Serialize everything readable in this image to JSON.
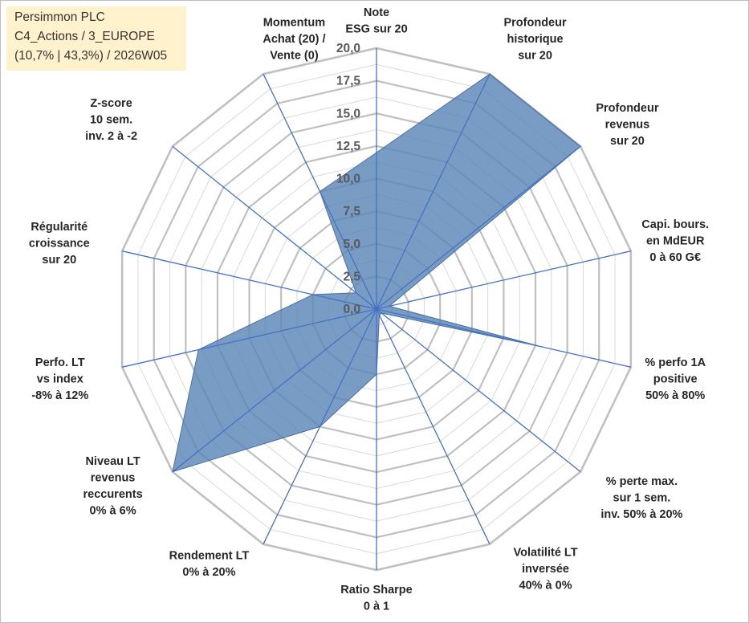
{
  "info_box": {
    "company": "Persimmon PLC",
    "category": "C4_Actions / 3_EUROPE",
    "stats": "(10,7% | 43,3%) / 2026W05"
  },
  "chart_data": {
    "type": "radar",
    "title": "",
    "rlim": [
      0,
      20
    ],
    "ticks": [
      "0,0",
      "2,5",
      "5,0",
      "7,5",
      "10,0",
      "12,5",
      "15,0",
      "17,5",
      "20,0"
    ],
    "tick_values": [
      0,
      2.5,
      5,
      7.5,
      10,
      12.5,
      15,
      17.5,
      20
    ],
    "grid": true,
    "colors": {
      "fill": "#5b86b8",
      "edge": "#4a6f9e",
      "spoke": "#4472c4",
      "grid": "#c0c0c0"
    },
    "axes": [
      {
        "label": [
          "Note",
          "ESG sur 20"
        ],
        "value": 12.0
      },
      {
        "label": [
          "Profondeur",
          "historique",
          "sur 20"
        ],
        "value": 20.0
      },
      {
        "label": [
          "Profondeur",
          "revenus",
          "sur 20"
        ],
        "value": 20.0
      },
      {
        "label": [
          "Capi. bours.",
          "en MdEUR",
          "0 à 60 G€"
        ],
        "value": 1.0
      },
      {
        "label": [
          "% perfo 1A",
          "positive",
          "50% à 80%"
        ],
        "value": 13.0
      },
      {
        "label": [
          "% perte max.",
          "sur 1 sem.",
          "inv. 50% à 20%"
        ],
        "value": 0.5
      },
      {
        "label": [
          "Volatilité LT",
          "inversée",
          "40% à 0%"
        ],
        "value": 0.5
      },
      {
        "label": [
          "Ratio Sharpe",
          "0 à 1"
        ],
        "value": 5.0
      },
      {
        "label": [
          "Rendement LT",
          "0% à 20%"
        ],
        "value": 10.0
      },
      {
        "label": [
          "Niveau LT",
          "revenus",
          "reccurents",
          "0% à 6%"
        ],
        "value": 20.0
      },
      {
        "label": [
          "Perfo. LT",
          "vs index",
          "-8% à 12%"
        ],
        "value": 14.0
      },
      {
        "label": [
          "Régularité",
          "croissance",
          "sur 20"
        ],
        "value": 5.0
      },
      {
        "label": [
          "Z-score",
          "10 sem.",
          "inv. 2 à -2"
        ],
        "value": 2.0
      },
      {
        "label": [
          "Momentum",
          "Achat (20) /",
          "Vente (0)"
        ],
        "value": 10.0
      }
    ]
  }
}
